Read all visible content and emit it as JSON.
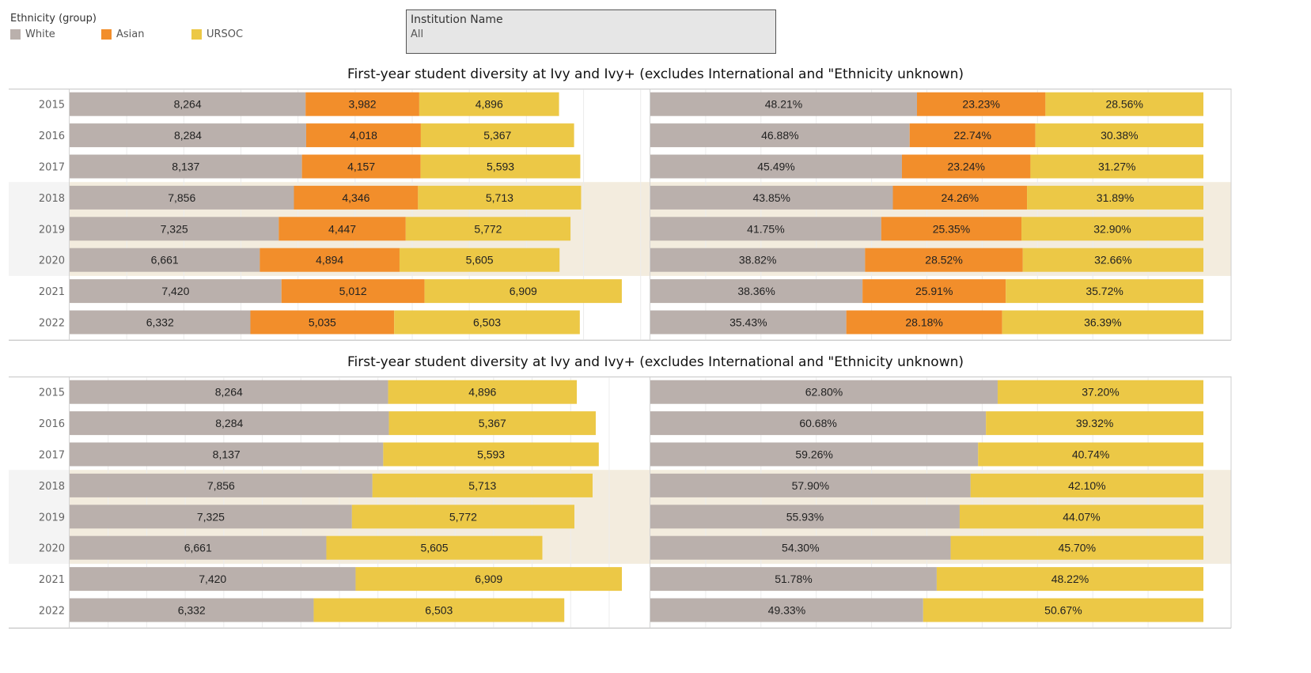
{
  "legend": {
    "title": "Ethnicity (group)",
    "items": [
      {
        "label": "White",
        "color": "#bab0ac"
      },
      {
        "label": "Asian",
        "color": "#f28e2b"
      },
      {
        "label": "URSOC",
        "color": "#ecc846"
      }
    ]
  },
  "filter": {
    "label": "Institution Name",
    "value": "All"
  },
  "colors": {
    "White": "#bab0ac",
    "Asian": "#f28e2b",
    "URSOC": "#ecc846",
    "highlight_band": "#f3ecde",
    "highlight_label_bg": "#f4f4f4"
  },
  "highlighted_years": [
    "2018",
    "2019",
    "2020"
  ],
  "chart_data": [
    {
      "type": "bar",
      "orientation": "horizontal",
      "stacked": true,
      "title": "First-year student diversity at Ivy and Ivy+ (excludes International and \"Ethnicity unknown)",
      "categories": [
        "2015",
        "2016",
        "2017",
        "2018",
        "2019",
        "2020",
        "2021",
        "2022"
      ],
      "panels": [
        {
          "measure": "count",
          "xlim": [
            0,
            20000
          ],
          "series": [
            {
              "name": "White",
              "values": [
                8264,
                8284,
                8137,
                7856,
                7325,
                6661,
                7420,
                6332
              ],
              "labels": [
                "8,264",
                "8,284",
                "8,137",
                "7,856",
                "7,325",
                "6,661",
                "7,420",
                "6,332"
              ]
            },
            {
              "name": "Asian",
              "values": [
                3982,
                4018,
                4157,
                4346,
                4447,
                4894,
                5012,
                5035
              ],
              "labels": [
                "3,982",
                "4,018",
                "4,157",
                "4,346",
                "4,447",
                "4,894",
                "5,012",
                "5,035"
              ]
            },
            {
              "name": "URSOC",
              "values": [
                4896,
                5367,
                5593,
                5713,
                5772,
                5605,
                6909,
                6503
              ],
              "labels": [
                "4,896",
                "5,367",
                "5,593",
                "5,713",
                "5,772",
                "5,605",
                "6,909",
                "6,503"
              ]
            }
          ]
        },
        {
          "measure": "percent",
          "xlim": [
            0,
            100
          ],
          "series": [
            {
              "name": "White",
              "values": [
                48.21,
                46.88,
                45.49,
                43.85,
                41.75,
                38.82,
                38.36,
                35.43
              ],
              "labels": [
                "48.21%",
                "46.88%",
                "45.49%",
                "43.85%",
                "41.75%",
                "38.82%",
                "38.36%",
                "35.43%"
              ]
            },
            {
              "name": "Asian",
              "values": [
                23.23,
                22.74,
                23.24,
                24.26,
                25.35,
                28.52,
                25.91,
                28.18
              ],
              "labels": [
                "23.23%",
                "22.74%",
                "23.24%",
                "24.26%",
                "25.35%",
                "28.52%",
                "25.91%",
                "28.18%"
              ]
            },
            {
              "name": "URSOC",
              "values": [
                28.56,
                30.38,
                31.27,
                31.89,
                32.9,
                32.66,
                35.72,
                36.39
              ],
              "labels": [
                "28.56%",
                "30.38%",
                "31.27%",
                "31.89%",
                "32.90%",
                "32.66%",
                "35.72%",
                "36.39%"
              ]
            }
          ]
        }
      ]
    },
    {
      "type": "bar",
      "orientation": "horizontal",
      "stacked": true,
      "title": "First-year student diversity at Ivy and Ivy+ (excludes International and \"Ethnicity unknown)",
      "categories": [
        "2015",
        "2016",
        "2017",
        "2018",
        "2019",
        "2020",
        "2021",
        "2022"
      ],
      "panels": [
        {
          "measure": "count",
          "xlim": [
            0,
            15000
          ],
          "series": [
            {
              "name": "White",
              "values": [
                8264,
                8284,
                8137,
                7856,
                7325,
                6661,
                7420,
                6332
              ],
              "labels": [
                "8,264",
                "8,284",
                "8,137",
                "7,856",
                "7,325",
                "6,661",
                "7,420",
                "6,332"
              ]
            },
            {
              "name": "URSOC",
              "values": [
                4896,
                5367,
                5593,
                5713,
                5772,
                5605,
                6909,
                6503
              ],
              "labels": [
                "4,896",
                "5,367",
                "5,593",
                "5,713",
                "5,772",
                "5,605",
                "6,909",
                "6,503"
              ]
            }
          ]
        },
        {
          "measure": "percent",
          "xlim": [
            0,
            100
          ],
          "series": [
            {
              "name": "White",
              "values": [
                62.8,
                60.68,
                59.26,
                57.9,
                55.93,
                54.3,
                51.78,
                49.33
              ],
              "labels": [
                "62.80%",
                "60.68%",
                "59.26%",
                "57.90%",
                "55.93%",
                "54.30%",
                "51.78%",
                "49.33%"
              ]
            },
            {
              "name": "URSOC",
              "values": [
                37.2,
                39.32,
                40.74,
                42.1,
                44.07,
                45.7,
                48.22,
                50.67
              ],
              "labels": [
                "37.20%",
                "39.32%",
                "40.74%",
                "42.10%",
                "44.07%",
                "45.70%",
                "48.22%",
                "50.67%"
              ]
            }
          ]
        }
      ]
    }
  ]
}
